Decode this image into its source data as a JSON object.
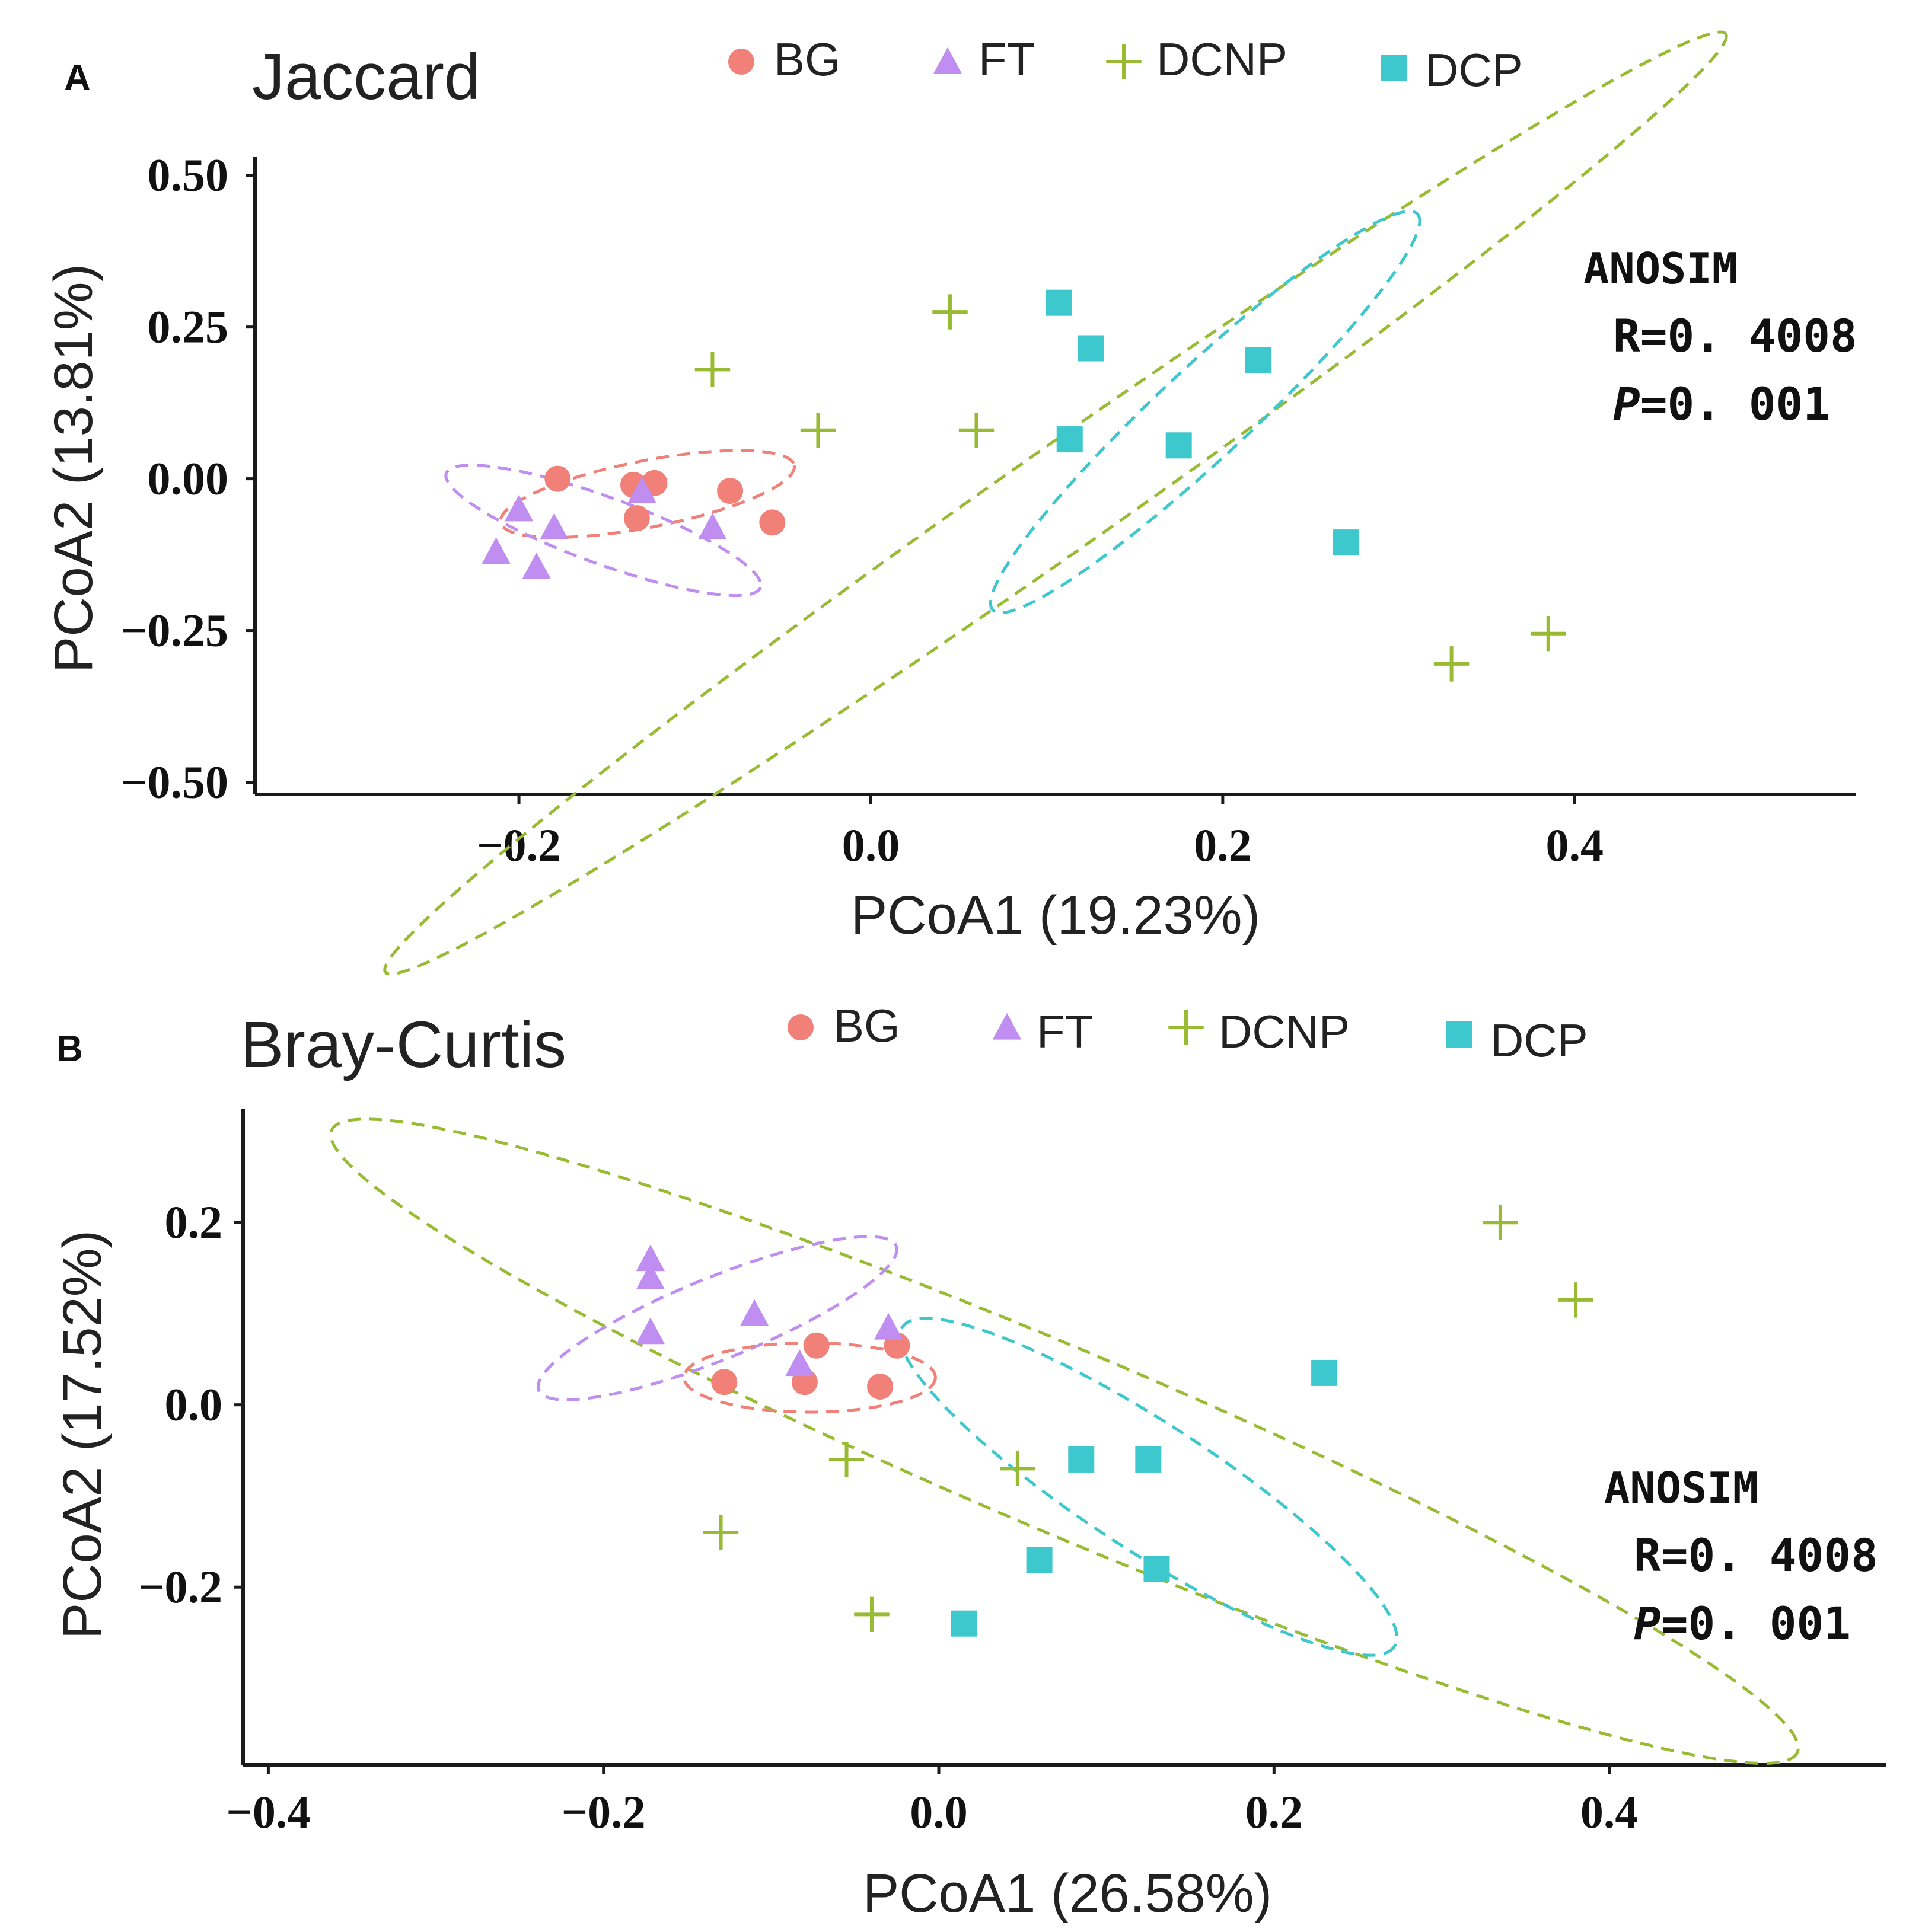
{
  "colors": {
    "BG": "#f08078",
    "FT": "#c08ef0",
    "DCNP": "#99bb33",
    "DCP": "#3cc8cc",
    "axis": "#1a1a1a",
    "text": "#1a1a1a"
  },
  "chart_data": [
    {
      "type": "scatter",
      "panel_label": "A",
      "title": "Jaccard",
      "xlabel": "PCoA1 (19.23%)",
      "ylabel": "PCoA2 (13.81%)",
      "xlim": [
        -0.35,
        0.56
      ],
      "ylim": [
        -0.52,
        0.53
      ],
      "xticks": [
        -0.2,
        0.0,
        0.2,
        0.4
      ],
      "xtick_labels": [
        "−0.2",
        "0.0",
        "0.2",
        "0.4"
      ],
      "yticks": [
        0.5,
        0.25,
        0.0,
        -0.25,
        -0.5
      ],
      "ytick_labels": [
        "0.50",
        "0.25",
        "0.00",
        "−0.25",
        "−0.50"
      ],
      "legend": [
        {
          "name": "BG",
          "shape": "circle"
        },
        {
          "name": "FT",
          "shape": "triangle"
        },
        {
          "name": "DCNP",
          "shape": "plus"
        },
        {
          "name": "DCP",
          "shape": "square"
        }
      ],
      "annotation": {
        "method": "ANOSIM",
        "r": "R=0. 4008",
        "p_label": "P",
        "p_value": "=0. 001"
      },
      "series": [
        {
          "name": "BG",
          "points": [
            [
              -0.178,
              0.0
            ],
            [
              -0.135,
              -0.01
            ],
            [
              -0.123,
              -0.007
            ],
            [
              -0.133,
              -0.065
            ],
            [
              -0.08,
              -0.02
            ],
            [
              -0.056,
              -0.072
            ]
          ]
        },
        {
          "name": "FT",
          "points": [
            [
              -0.2,
              -0.05
            ],
            [
              -0.18,
              -0.08
            ],
            [
              -0.213,
              -0.12
            ],
            [
              -0.19,
              -0.145
            ],
            [
              -0.13,
              -0.02
            ],
            [
              -0.09,
              -0.08
            ]
          ]
        },
        {
          "name": "DCNP",
          "points": [
            [
              -0.09,
              0.18
            ],
            [
              -0.03,
              0.08
            ],
            [
              0.045,
              0.275
            ],
            [
              0.06,
              0.08
            ],
            [
              0.33,
              -0.305
            ],
            [
              0.385,
              -0.255
            ]
          ]
        },
        {
          "name": "DCP",
          "points": [
            [
              0.107,
              0.29
            ],
            [
              0.125,
              0.215
            ],
            [
              0.22,
              0.195
            ],
            [
              0.113,
              0.065
            ],
            [
              0.175,
              0.055
            ],
            [
              0.27,
              -0.105
            ]
          ]
        }
      ],
      "ellipses": [
        {
          "name": "DCNP",
          "center": [
            0.105,
            -0.04
          ],
          "semi_axes": [
            0.465,
            0.085
          ],
          "angle_deg": -35
        },
        {
          "name": "DCP",
          "center": [
            0.19,
            0.11
          ],
          "semi_axes": [
            0.165,
            0.075
          ],
          "angle_deg": -43
        },
        {
          "name": "BG",
          "center": [
            -0.127,
            -0.025
          ],
          "semi_axes": [
            0.085,
            0.055
          ],
          "angle_deg": -11
        },
        {
          "name": "FT",
          "center": [
            -0.152,
            -0.085
          ],
          "semi_axes": [
            0.095,
            0.055
          ],
          "angle_deg": 20
        }
      ]
    },
    {
      "type": "scatter",
      "panel_label": "B",
      "title": "Bray-Curtis",
      "xlabel": "PCoA1 (26.58%)",
      "ylabel": "PCoA2 (17.52%)",
      "xlim": [
        -0.415,
        0.565
      ],
      "ylim": [
        -0.395,
        0.325
      ],
      "xticks": [
        -0.4,
        -0.2,
        0.0,
        0.2,
        0.4
      ],
      "xtick_labels": [
        "−0.4",
        "−0.2",
        "0.0",
        "0.2",
        "0.4"
      ],
      "yticks": [
        0.2,
        0.0,
        -0.2
      ],
      "ytick_labels": [
        "0.2",
        "0.0",
        "−0.2"
      ],
      "legend": [
        {
          "name": "BG",
          "shape": "circle"
        },
        {
          "name": "FT",
          "shape": "triangle"
        },
        {
          "name": "DCNP",
          "shape": "plus"
        },
        {
          "name": "DCP",
          "shape": "square"
        }
      ],
      "annotation": {
        "method": "ANOSIM",
        "r": "R=0. 4008",
        "p_label": "P",
        "p_value": "=0. 001"
      },
      "series": [
        {
          "name": "BG",
          "points": [
            [
              -0.128,
              0.025
            ],
            [
              -0.08,
              0.025
            ],
            [
              -0.073,
              0.065
            ],
            [
              -0.035,
              0.02
            ],
            [
              -0.025,
              0.065
            ]
          ]
        },
        {
          "name": "FT",
          "points": [
            [
              -0.172,
              0.16
            ],
            [
              -0.172,
              0.14
            ],
            [
              -0.172,
              0.08
            ],
            [
              -0.11,
              0.1
            ],
            [
              -0.083,
              0.045
            ],
            [
              -0.03,
              0.085
            ]
          ]
        },
        {
          "name": "DCNP",
          "points": [
            [
              -0.13,
              -0.14
            ],
            [
              -0.055,
              -0.06
            ],
            [
              0.047,
              -0.07
            ],
            [
              -0.04,
              -0.23
            ],
            [
              0.335,
              0.2
            ],
            [
              0.38,
              0.115
            ]
          ]
        },
        {
          "name": "DCP",
          "points": [
            [
              0.085,
              -0.06
            ],
            [
              0.125,
              -0.06
            ],
            [
              0.23,
              0.035
            ],
            [
              0.06,
              -0.17
            ],
            [
              0.13,
              -0.18
            ],
            [
              0.015,
              -0.24
            ]
          ]
        }
      ],
      "ellipses": [
        {
          "name": "DCNP",
          "center": [
            0.075,
            -0.04
          ],
          "semi_axes": [
            0.475,
            0.1
          ],
          "angle_deg": 23
        },
        {
          "name": "DCP",
          "center": [
            0.125,
            -0.09
          ],
          "semi_axes": [
            0.175,
            0.07
          ],
          "angle_deg": 33
        },
        {
          "name": "FT",
          "center": [
            -0.132,
            0.095
          ],
          "semi_axes": [
            0.115,
            0.045
          ],
          "angle_deg": -22
        },
        {
          "name": "BG",
          "center": [
            -0.077,
            0.03
          ],
          "semi_axes": [
            0.075,
            0.038
          ],
          "angle_deg": 0
        }
      ]
    }
  ]
}
